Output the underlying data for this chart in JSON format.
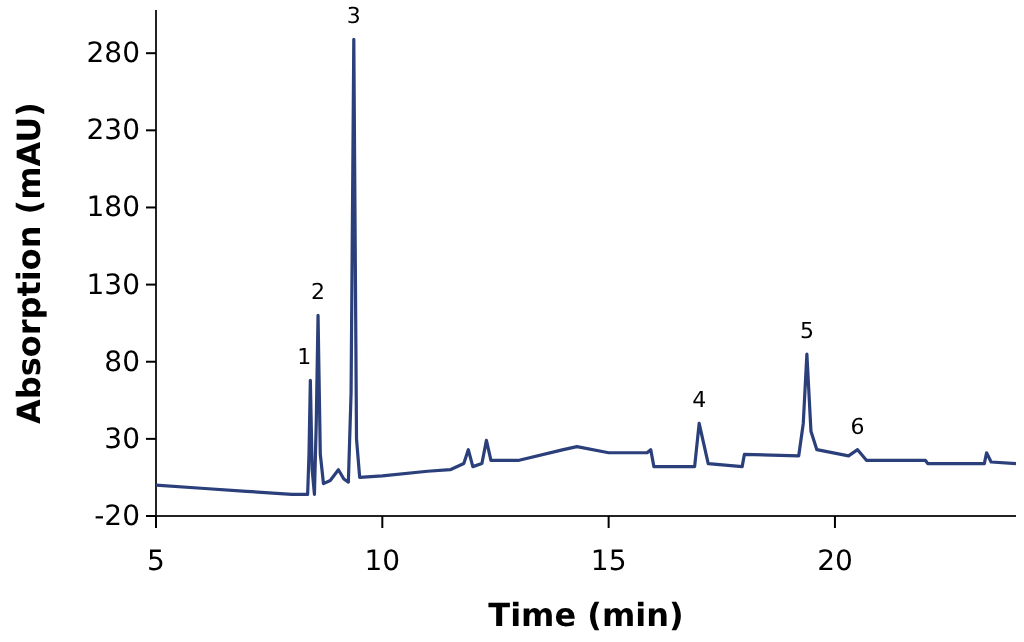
{
  "chart_data": {
    "type": "line",
    "xlabel": "Time (min)",
    "ylabel": "Absorption (mAU)",
    "xlim": [
      5,
      24
    ],
    "xticks": [
      5,
      10,
      15,
      20
    ],
    "ylim": [
      -20,
      308
    ],
    "yticks": [
      -20,
      30,
      80,
      130,
      180,
      230,
      280
    ],
    "grid": false,
    "marker": "none",
    "line_style": "solid",
    "series": [
      {
        "color": "#2b3f7a",
        "x": [
          5,
          6,
          7,
          8,
          8.35,
          8.38,
          8.41,
          8.45,
          8.5,
          8.54,
          8.58,
          8.63,
          8.7,
          8.85,
          9.03,
          9.15,
          9.25,
          9.31,
          9.37,
          9.43,
          9.5,
          10,
          11,
          11.5,
          11.8,
          11.9,
          12.0,
          12.2,
          12.3,
          12.4,
          13,
          14,
          14.3,
          15,
          15.85,
          15.93,
          16.0,
          16.9,
          17.0,
          17.2,
          17.95,
          18.0,
          19.2,
          19.3,
          19.38,
          19.47,
          19.6,
          20.3,
          20.5,
          20.7,
          22.0,
          22.05,
          23.3,
          23.35,
          23.45,
          24
        ],
        "values": [
          0,
          -2,
          -4,
          -6,
          -6,
          20,
          68,
          10,
          -6,
          40,
          110,
          20,
          1,
          3,
          10,
          4,
          2,
          60,
          289,
          30,
          5,
          6,
          9,
          10,
          14,
          23,
          12,
          14,
          29,
          16,
          16,
          23,
          25,
          21,
          21,
          23,
          12,
          12,
          40,
          14,
          12,
          20,
          19,
          40,
          85,
          35,
          23,
          19,
          23,
          16,
          16,
          14,
          14,
          21,
          15,
          14
        ]
      }
    ],
    "annotations": [
      {
        "text": "1",
        "x": 8.41,
        "y": 68
      },
      {
        "text": "2",
        "x": 8.58,
        "y": 110
      },
      {
        "text": "3",
        "x": 9.37,
        "y": 289
      },
      {
        "text": "4",
        "x": 17.0,
        "y": 40
      },
      {
        "text": "5",
        "x": 19.38,
        "y": 85
      },
      {
        "text": "6",
        "x": 20.5,
        "y": 23
      }
    ]
  }
}
